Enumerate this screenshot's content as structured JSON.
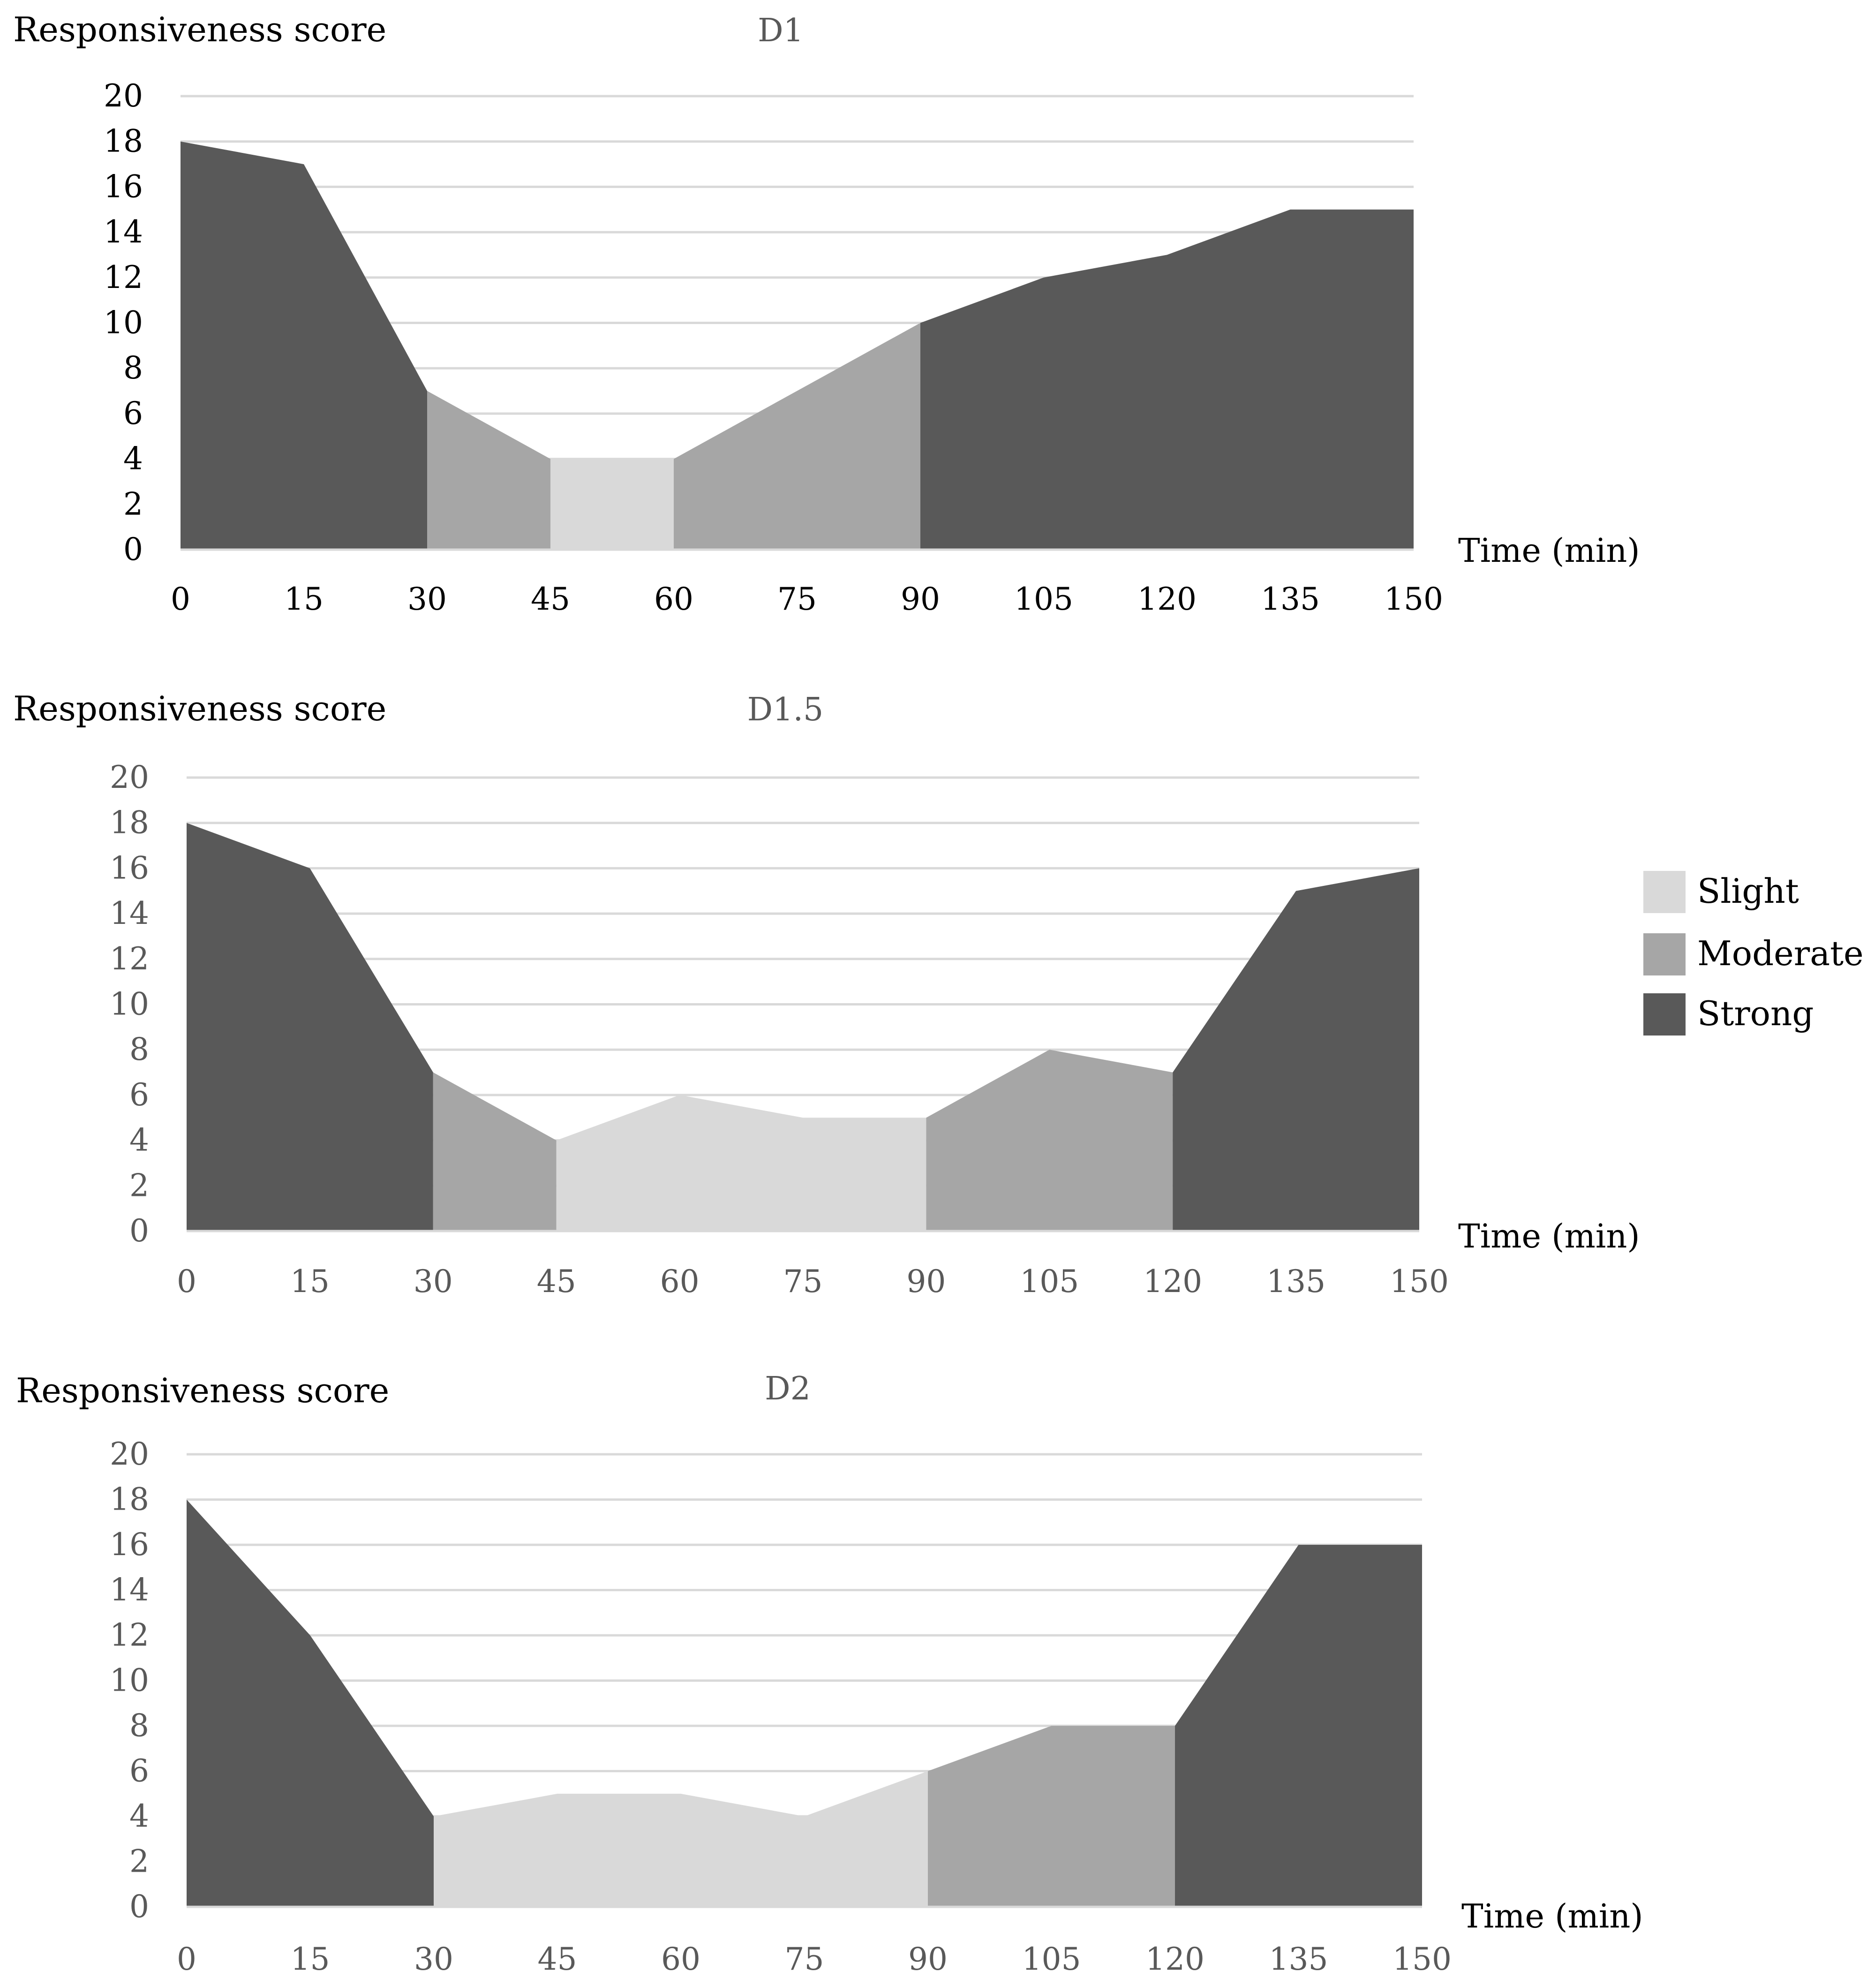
{
  "legend": [
    {
      "label": "Slight",
      "color": "#d9d9d9"
    },
    {
      "label": "Moderate",
      "color": "#a6a6a6"
    },
    {
      "label": "Strong",
      "color": "#595959"
    }
  ],
  "chart_data": [
    {
      "type": "area",
      "title": "D1",
      "ylabel": "Responsiveness score",
      "xlabel": "Time (min)",
      "x": [
        0,
        15,
        30,
        45,
        60,
        75,
        90,
        105,
        120,
        135,
        150
      ],
      "y": [
        18,
        17,
        7,
        4,
        4,
        7,
        10,
        12,
        13,
        15,
        15
      ],
      "yticks": [
        0,
        2,
        4,
        6,
        8,
        10,
        12,
        14,
        16,
        18,
        20
      ],
      "ylim": [
        0,
        20
      ],
      "segments": [
        {
          "from": 0,
          "to": 30,
          "level": "Strong"
        },
        {
          "from": 30,
          "to": 45,
          "level": "Moderate"
        },
        {
          "from": 45,
          "to": 60,
          "level": "Slight"
        },
        {
          "from": 60,
          "to": 90,
          "level": "Moderate"
        },
        {
          "from": 90,
          "to": 150,
          "level": "Strong"
        }
      ]
    },
    {
      "type": "area",
      "title": "D1.5",
      "ylabel": "Responsiveness score",
      "xlabel": "Time (min)",
      "x": [
        0,
        15,
        30,
        45,
        60,
        75,
        90,
        105,
        120,
        135,
        150
      ],
      "y": [
        18,
        16,
        7,
        4,
        6,
        5,
        5,
        8,
        7,
        15,
        16
      ],
      "yticks": [
        0,
        2,
        4,
        6,
        8,
        10,
        12,
        14,
        16,
        18,
        20
      ],
      "ylim": [
        0,
        20
      ],
      "segments": [
        {
          "from": 0,
          "to": 30,
          "level": "Strong"
        },
        {
          "from": 30,
          "to": 45,
          "level": "Moderate"
        },
        {
          "from": 45,
          "to": 90,
          "level": "Slight"
        },
        {
          "from": 90,
          "to": 120,
          "level": "Moderate"
        },
        {
          "from": 120,
          "to": 150,
          "level": "Strong"
        }
      ]
    },
    {
      "type": "area",
      "title": "D2",
      "ylabel": "Responsiveness score",
      "xlabel": "Time (min)",
      "x": [
        0,
        15,
        30,
        45,
        60,
        75,
        90,
        105,
        120,
        135,
        150
      ],
      "y": [
        18,
        12,
        4,
        5,
        5,
        4,
        6,
        8,
        8,
        16,
        16
      ],
      "yticks": [
        0,
        2,
        4,
        6,
        8,
        10,
        12,
        14,
        16,
        18,
        20
      ],
      "ylim": [
        0,
        20
      ],
      "segments": [
        {
          "from": 0,
          "to": 30,
          "level": "Strong"
        },
        {
          "from": 30,
          "to": 90,
          "level": "Slight"
        },
        {
          "from": 90,
          "to": 120,
          "level": "Moderate"
        },
        {
          "from": 120,
          "to": 150,
          "level": "Strong"
        }
      ]
    }
  ]
}
